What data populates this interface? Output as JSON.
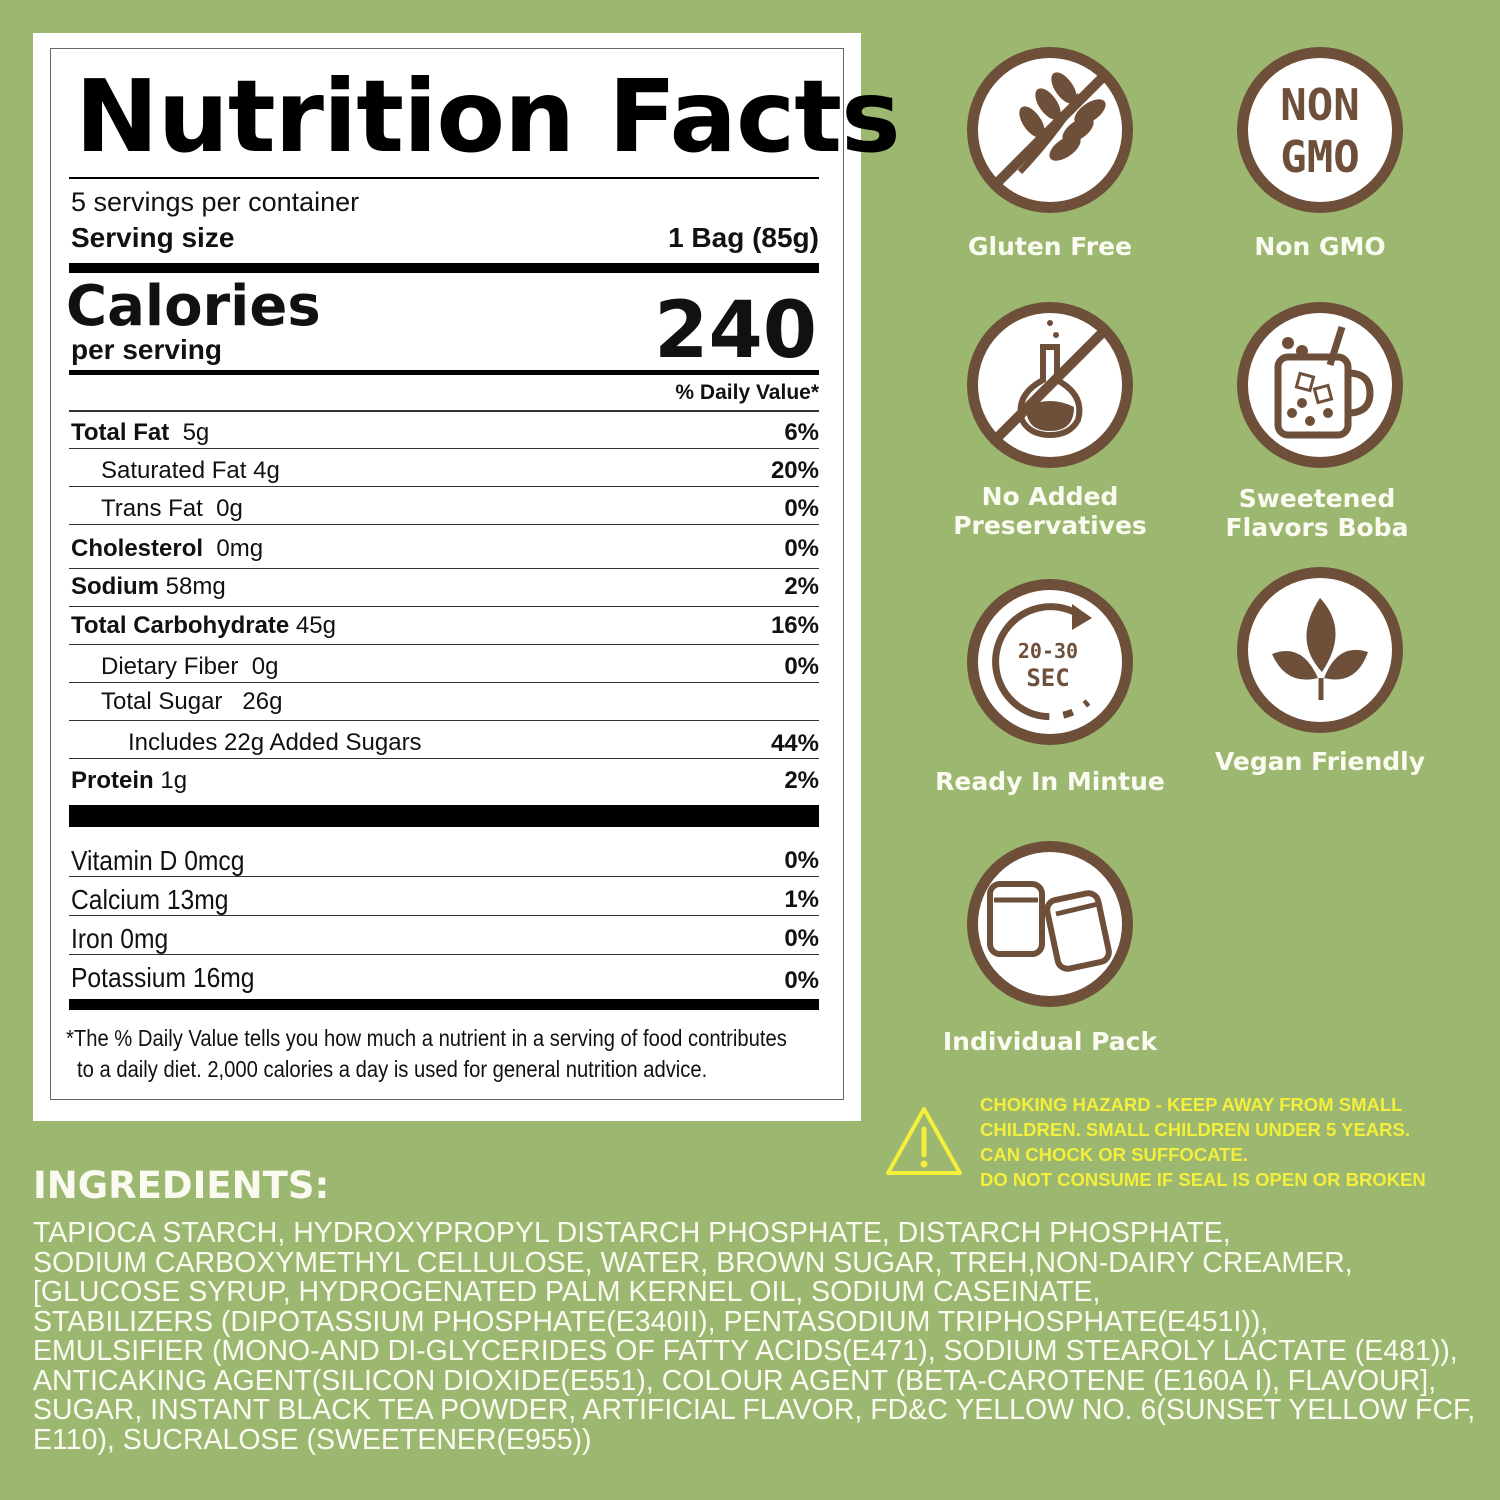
{
  "label": {
    "title": "Nutrition Facts",
    "servings_per_container": "5 servings per container",
    "serving_size_label": "Serving size",
    "serving_size_value": "1 Bag (85g)",
    "calories_label": "Calories",
    "calories_sub": "per serving",
    "calories_value": "240",
    "daily_value_header": "% Daily Value*",
    "nutrients": [
      {
        "name": "Total Fat",
        "amount": "5g",
        "dv": "6%"
      },
      {
        "name": "Saturated Fat",
        "amount": "4g",
        "dv": "20%"
      },
      {
        "name": "Trans Fat",
        "amount": "0g",
        "dv": "0%"
      },
      {
        "name": "Cholesterol",
        "amount": "0mg",
        "dv": "0%"
      },
      {
        "name": "Sodium",
        "amount": "58mg",
        "dv": "2%"
      },
      {
        "name": "Total Carbohydrate",
        "amount": "45g",
        "dv": "16%"
      },
      {
        "name": "Dietary Fiber",
        "amount": "0g",
        "dv": "0%"
      },
      {
        "name": "Total Sugar",
        "amount": "26g",
        "dv": ""
      },
      {
        "name": "Includes 22g Added Sugars",
        "amount": "",
        "dv": "44%"
      },
      {
        "name": "Protein",
        "amount": "1g",
        "dv": "2%"
      }
    ],
    "vitamins": [
      {
        "name": "Vitamin D 0mcg",
        "dv": "0%"
      },
      {
        "name": "Calcium 13mg",
        "dv": "1%"
      },
      {
        "name": "Iron 0mg",
        "dv": "0%"
      },
      {
        "name": "Potassium 16mg",
        "dv": "0%"
      }
    ],
    "footnote_line1": "*The % Daily Value tells you how much a nutrient in a serving of food contributes",
    "footnote_line2": "to a daily diet. 2,000 calories a day is used for general nutrition advice."
  },
  "badges": [
    {
      "icon": "gluten-free-icon",
      "label": "Gluten Free"
    },
    {
      "icon": "non-gmo-icon",
      "label": "Non GMO",
      "icon_text_1": "NON",
      "icon_text_2": "GMO"
    },
    {
      "icon": "no-preservatives-icon",
      "label_line1": "No Added",
      "label_line2": "Preservatives"
    },
    {
      "icon": "boba-mug-icon",
      "label_line1": "Sweetened",
      "label_line2": "Flavors Boba"
    },
    {
      "icon": "timer-icon",
      "label": "Ready In Mintue",
      "icon_text_1": "20-30",
      "icon_text_2": "SEC"
    },
    {
      "icon": "leaves-icon",
      "label": "Vegan Friendly"
    },
    {
      "icon": "pack-icon",
      "label": "Individual Pack"
    }
  ],
  "warning": {
    "line1": "CHOKING HAZARD - KEEP AWAY FROM SMALL",
    "line2": "CHILDREN. SMALL CHILDREN UNDER 5 YEARS.",
    "line3": "CAN CHOCK OR SUFFOCATE.",
    "line4": "DO NOT CONSUME IF SEAL IS OPEN OR BROKEN"
  },
  "ingredients": {
    "heading": "INGREDIENTS:",
    "lines": [
      "TAPIOCA STARCH, HYDROXYPROPYL DISTARCH PHOSPHATE, DISTARCH PHOSPHATE,",
      "SODIUM CARBOXYMETHYL CELLULOSE, WATER, BROWN SUGAR, TREH,NON-DAIRY CREAMER,",
      "[GLUCOSE SYRUP, HYDROGENATED PALM KERNEL OIL, SODIUM CASEINATE,",
      "STABILIZERS (DIPOTASSIUM PHOSPHATE(E340II), PENTASODIUM TRIPHOSPHATE(E451I)),",
      "EMULSIFIER (MONO-AND DI-GLYCERIDES OF FATTY ACIDS(E471), SODIUM STEAROLY LACTATE (E481)),",
      "ANTICAKING AGENT(SILICON DIOXIDE(E551), COLOUR AGENT (BETA-CAROTENE (E160A I), FLAVOUR],",
      "SUGAR, INSTANT BLACK TEA POWDER, ARTIFICIAL FLAVOR, FD&C YELLOW NO. 6(SUNSET YELLOW FCF,",
      "E110), SUCRALOSE (SWEETENER(E955))"
    ]
  },
  "colors": {
    "background": "#9cb870",
    "badge_brown": "#6e4f3a",
    "warning_yellow": "#f4ee3c",
    "text_light": "#fafaf0"
  }
}
